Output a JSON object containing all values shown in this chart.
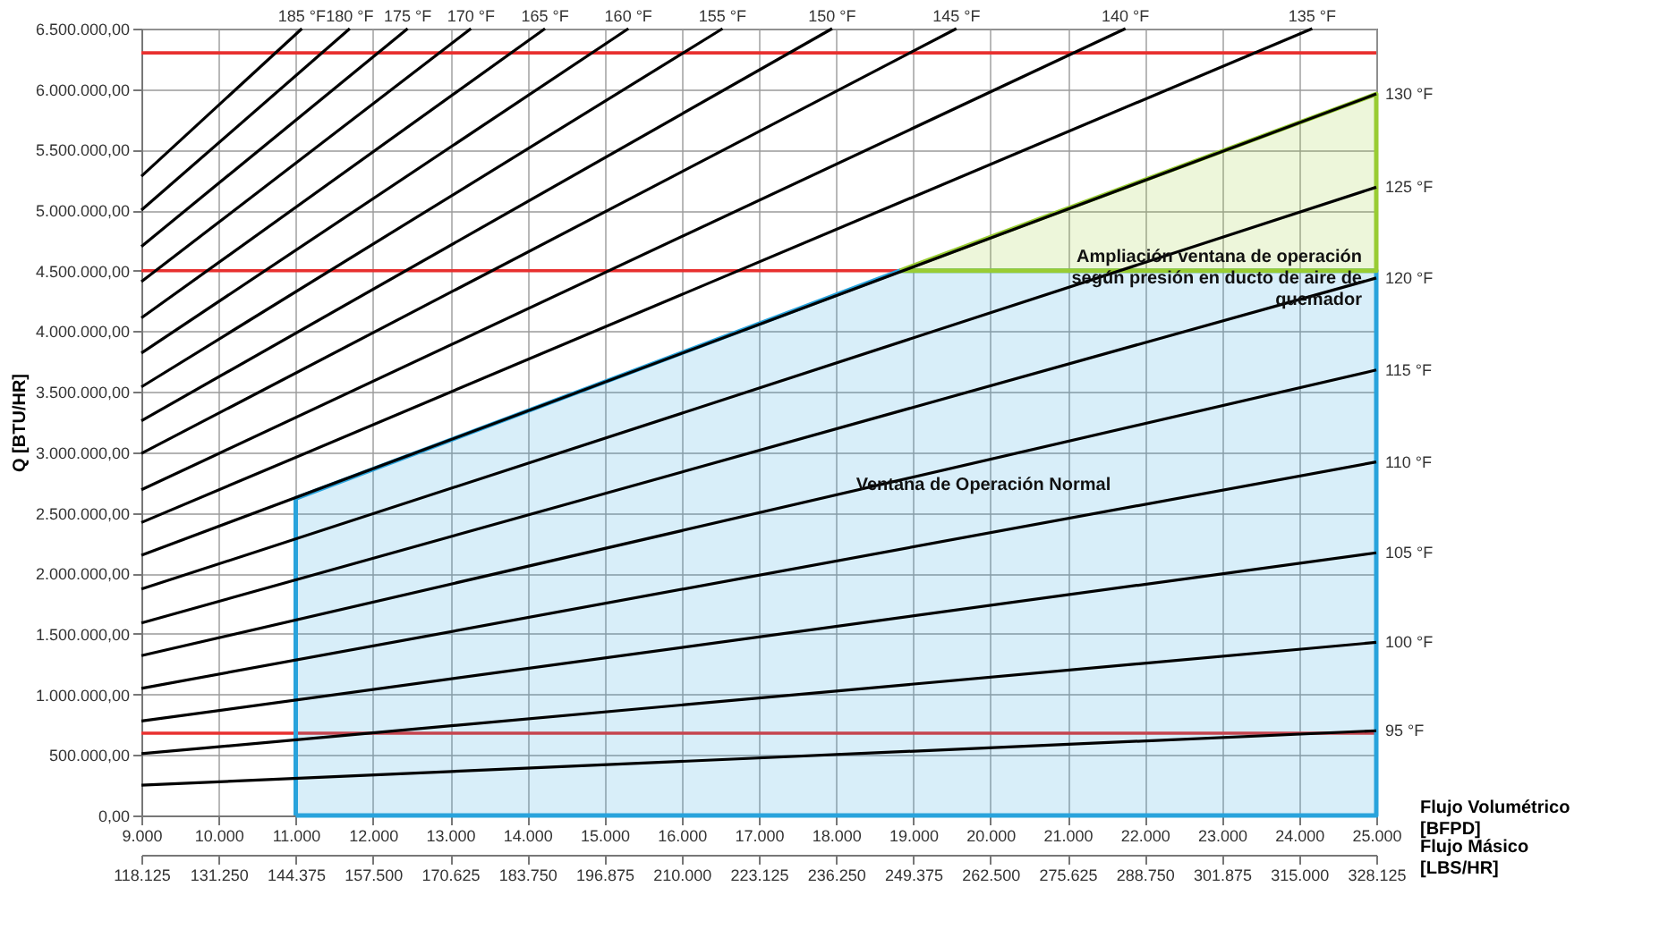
{
  "chart_data": {
    "type": "line",
    "xlabel": "Flujo Volumétrico [BFPD]",
    "x2label": "Flujo Másico [LBS/HR]",
    "ylabel": "Q [BTU/HR]",
    "xlim": [
      9000,
      25000
    ],
    "ylim": [
      0,
      6500000
    ],
    "x2lim": [
      118125,
      328125
    ],
    "xticks": [
      {
        "value": 9000,
        "label": "9.000"
      },
      {
        "value": 10000,
        "label": "10.000"
      },
      {
        "value": 11000,
        "label": "11.000"
      },
      {
        "value": 12000,
        "label": "12.000"
      },
      {
        "value": 13000,
        "label": "13.000"
      },
      {
        "value": 14000,
        "label": "14.000"
      },
      {
        "value": 15000,
        "label": "15.000"
      },
      {
        "value": 16000,
        "label": "16.000"
      },
      {
        "value": 17000,
        "label": "17.000"
      },
      {
        "value": 18000,
        "label": "18.000"
      },
      {
        "value": 19000,
        "label": "19.000"
      },
      {
        "value": 20000,
        "label": "20.000"
      },
      {
        "value": 21000,
        "label": "21.000"
      },
      {
        "value": 22000,
        "label": "22.000"
      },
      {
        "value": 23000,
        "label": "23.000"
      },
      {
        "value": 24000,
        "label": "24.000"
      },
      {
        "value": 25000,
        "label": "25.000"
      }
    ],
    "x2ticks": [
      {
        "value": 118125,
        "label": "118.125"
      },
      {
        "value": 131250,
        "label": "131.250"
      },
      {
        "value": 144375,
        "label": "144.375"
      },
      {
        "value": 157500,
        "label": "157.500"
      },
      {
        "value": 170625,
        "label": "170.625"
      },
      {
        "value": 183750,
        "label": "183.750"
      },
      {
        "value": 196875,
        "label": "196.875"
      },
      {
        "value": 210000,
        "label": "210.000"
      },
      {
        "value": 223125,
        "label": "223.125"
      },
      {
        "value": 236250,
        "label": "236.250"
      },
      {
        "value": 249375,
        "label": "249.375"
      },
      {
        "value": 262500,
        "label": "262.500"
      },
      {
        "value": 275625,
        "label": "275.625"
      },
      {
        "value": 288750,
        "label": "288.750"
      },
      {
        "value": 301875,
        "label": "301.875"
      },
      {
        "value": 315000,
        "label": "315.000"
      },
      {
        "value": 328125,
        "label": "328.125"
      }
    ],
    "yticks": [
      {
        "value": 0,
        "label": "0,00"
      },
      {
        "value": 500000,
        "label": "500.000,00"
      },
      {
        "value": 1000000,
        "label": "1.000.000,00"
      },
      {
        "value": 1500000,
        "label": "1.500.000,00"
      },
      {
        "value": 2000000,
        "label": "2.000.000,00"
      },
      {
        "value": 2500000,
        "label": "2.500.000,00"
      },
      {
        "value": 3000000,
        "label": "3.000.000,00"
      },
      {
        "value": 3500000,
        "label": "3.500.000,00"
      },
      {
        "value": 4000000,
        "label": "4.000.000,00"
      },
      {
        "value": 4500000,
        "label": "4.500.000,00"
      },
      {
        "value": 5000000,
        "label": "5.000.000,00"
      },
      {
        "value": 5500000,
        "label": "5.500.000,00"
      },
      {
        "value": 6000000,
        "label": "6.000.000,00"
      },
      {
        "value": 6500000,
        "label": "6.500.000,00"
      }
    ],
    "grid": true,
    "series": [
      {
        "type": "area",
        "color": "#29a3dc",
        "x": [
          11000,
          18830,
          25000
        ],
        "values": [
          2620000,
          4500000,
          4500000
        ]
      },
      {
        "type": "area",
        "color": "#99cc33",
        "x": [
          18830,
          25000
        ],
        "values": [
          4500000,
          5960000
        ]
      },
      {
        "name": "95 °F",
        "color": "#000000",
        "x": [
          9000,
          25000
        ],
        "values": [
          250000,
          700000
        ]
      },
      {
        "name": "100 °F",
        "color": "#000000",
        "x": [
          9000,
          25000
        ],
        "values": [
          510000,
          1430000
        ]
      },
      {
        "name": "105 °F",
        "color": "#000000",
        "x": [
          9000,
          25000
        ],
        "values": [
          780000,
          2170000
        ]
      },
      {
        "name": "110 °F",
        "color": "#000000",
        "x": [
          9000,
          25000
        ],
        "values": [
          1050000,
          2920000
        ]
      },
      {
        "name": "115 °F",
        "color": "#000000",
        "x": [
          9000,
          25000
        ],
        "values": [
          1320000,
          3680000
        ]
      },
      {
        "name": "120 °F",
        "color": "#000000",
        "x": [
          9000,
          25000
        ],
        "values": [
          1590000,
          4440000
        ]
      },
      {
        "name": "125 °F",
        "color": "#000000",
        "x": [
          9000,
          25000
        ],
        "values": [
          1870000,
          5190000
        ]
      },
      {
        "name": "130 °F",
        "color": "#000000",
        "x": [
          9000,
          25000
        ],
        "values": [
          2150000,
          5960000
        ]
      },
      {
        "name": "135 °F",
        "color": "#000000",
        "x": [
          9000,
          24170
        ],
        "values": [
          2420000,
          6500000
        ]
      },
      {
        "name": "140 °F",
        "color": "#000000",
        "x": [
          9000,
          21750
        ],
        "values": [
          2690000,
          6500000
        ]
      },
      {
        "name": "145 °F",
        "color": "#000000",
        "x": [
          9000,
          19560
        ],
        "values": [
          2990000,
          6500000
        ]
      },
      {
        "name": "150 °F",
        "color": "#000000",
        "x": [
          9000,
          17950
        ],
        "values": [
          3260000,
          6500000
        ]
      },
      {
        "name": "155 °F",
        "color": "#000000",
        "x": [
          9000,
          16530
        ],
        "values": [
          3540000,
          6500000
        ]
      },
      {
        "name": "160 °F",
        "color": "#000000",
        "x": [
          9000,
          15310
        ],
        "values": [
          3820000,
          6500000
        ]
      },
      {
        "name": "165 °F",
        "color": "#000000",
        "x": [
          9000,
          14230
        ],
        "values": [
          4110000,
          6500000
        ]
      },
      {
        "name": "170 °F",
        "color": "#000000",
        "x": [
          9000,
          13270
        ],
        "values": [
          4410000,
          6500000
        ]
      },
      {
        "name": "175 °F",
        "color": "#000000",
        "x": [
          9000,
          12450
        ],
        "values": [
          4700000,
          6500000
        ]
      },
      {
        "name": "180 °F",
        "color": "#000000",
        "x": [
          9000,
          11700
        ],
        "values": [
          5000000,
          6500000
        ]
      },
      {
        "name": "185 °F",
        "color": "#000000",
        "x": [
          9000,
          11080
        ],
        "values": [
          5280000,
          6500000
        ]
      }
    ],
    "ref_lines": [
      {
        "axis": "y",
        "value": 6300000,
        "color": "#e8302f"
      },
      {
        "axis": "y",
        "value": 4500000,
        "color": "#e8302f"
      },
      {
        "axis": "y",
        "value": 680000,
        "color": "#e8302f"
      }
    ],
    "annotations": [
      {
        "text": "Ventana de Operación Normal",
        "x": 18260,
        "y": 2730000
      },
      "Ampliación ventana de operación\nsegún presión en ducto de aire de\nquemador"
    ]
  }
}
